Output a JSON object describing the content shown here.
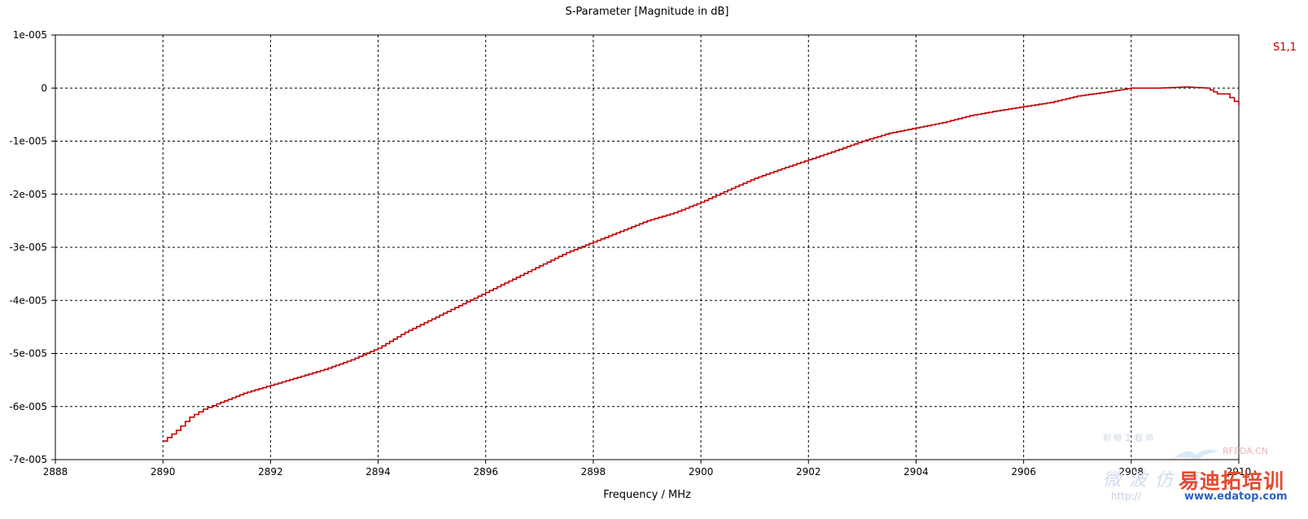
{
  "chart_data": {
    "type": "line",
    "title": "S-Parameter [Magnitude in dB]",
    "xlabel": "Frequency / MHz",
    "ylabel": "",
    "xlim": [
      2888,
      2910
    ],
    "ylim": [
      -7e-05,
      1e-05
    ],
    "x_ticks": [
      2888,
      2890,
      2892,
      2894,
      2896,
      2898,
      2900,
      2902,
      2904,
      2906,
      2908,
      2910
    ],
    "x_tick_labels": [
      "2888",
      "2890",
      "2892",
      "2894",
      "2896",
      "2898",
      "2900",
      "2902",
      "2904",
      "2906",
      "2908",
      "2910"
    ],
    "y_ticks": [
      1e-05,
      0,
      -1e-05,
      -2e-05,
      -3e-05,
      -4e-05,
      -5e-05,
      -6e-05,
      -7e-05
    ],
    "y_tick_labels": [
      "1e-005",
      "0",
      "-1e-005",
      "-2e-005",
      "-3e-005",
      "-4e-005",
      "-5e-005",
      "-6e-005",
      "-7e-005"
    ],
    "grid": true,
    "legend_position": "top-right",
    "series": [
      {
        "name": "S1,1",
        "color": "#c00000",
        "x": [
          2890.0,
          2890.25,
          2890.5,
          2890.75,
          2891.0,
          2891.5,
          2892.0,
          2892.5,
          2893.0,
          2893.5,
          2894.0,
          2894.5,
          2895.0,
          2895.5,
          2896.0,
          2896.5,
          2897.0,
          2897.5,
          2898.0,
          2898.5,
          2899.0,
          2899.5,
          2900.0,
          2900.5,
          2901.0,
          2901.5,
          2902.0,
          2902.5,
          2903.0,
          2903.5,
          2904.0,
          2904.5,
          2905.0,
          2905.5,
          2906.0,
          2906.5,
          2907.0,
          2907.5,
          2908.0,
          2908.5,
          2909.0,
          2909.4,
          2909.6,
          2909.75,
          2910.0
        ],
        "y": [
          -6.65e-05,
          -6.45e-05,
          -6.2e-05,
          -6.05e-05,
          -5.95e-05,
          -5.75e-05,
          -5.6e-05,
          -5.45e-05,
          -5.3e-05,
          -5.12e-05,
          -4.9e-05,
          -4.6e-05,
          -4.35e-05,
          -4.1e-05,
          -3.85e-05,
          -3.6e-05,
          -3.35e-05,
          -3.1e-05,
          -2.9e-05,
          -2.7e-05,
          -2.5e-05,
          -2.35e-05,
          -2.15e-05,
          -1.92e-05,
          -1.7e-05,
          -1.52e-05,
          -1.35e-05,
          -1.18e-05,
          -1e-05,
          -8.5e-06,
          -7.5e-06,
          -6.5e-06,
          -5.2e-06,
          -4.3e-06,
          -3.5e-06,
          -2.7e-06,
          -1.5e-06,
          -8e-07,
          0.0,
          0.0,
          2e-07,
          0.0,
          -1.1e-06,
          -1.1e-06,
          -3.2e-06
        ]
      }
    ]
  },
  "watermarks": {
    "site_name": "RFEDA.CN",
    "brand_cn": "易迪拓培训",
    "url": "www.edatop.com",
    "url_fragment": "http://",
    "faint_cn": "射频工程师",
    "faint_sub": "微波仿真"
  }
}
